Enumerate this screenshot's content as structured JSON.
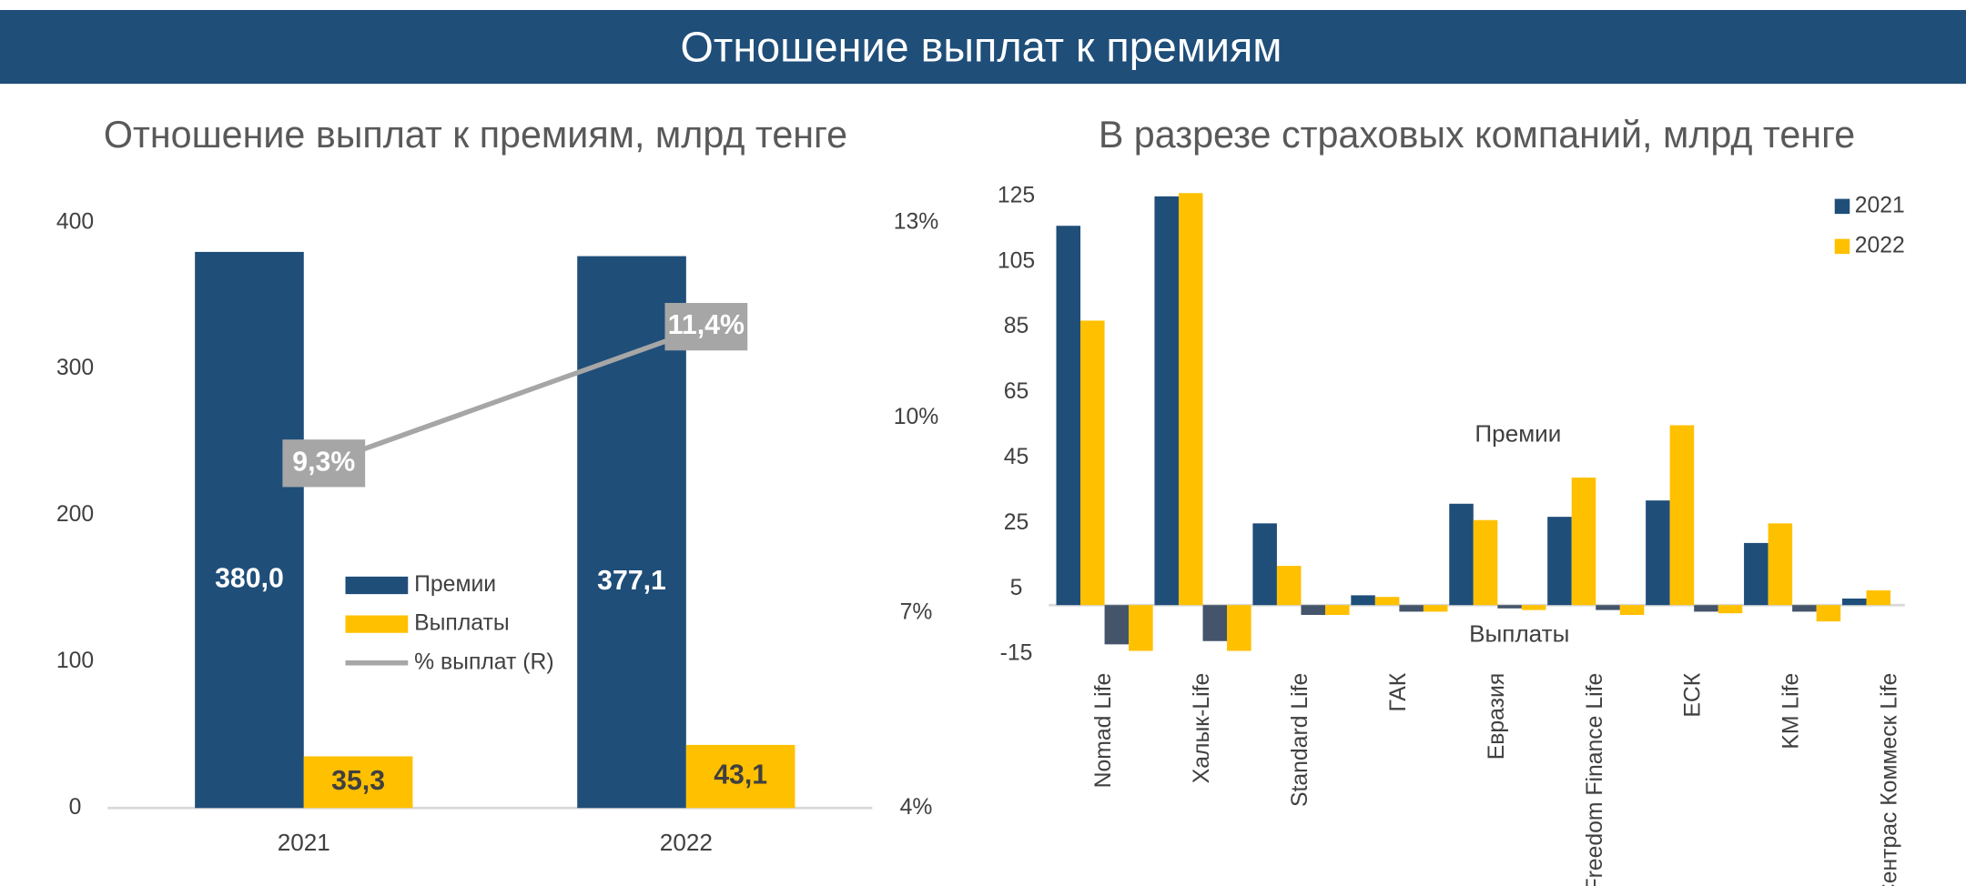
{
  "header": {
    "title": "Отношение выплат к премиям"
  },
  "chart_data": [
    {
      "type": "bar_line",
      "title": "Отношение выплат к премиям, млрд тенге",
      "categories": [
        "2021",
        "2022"
      ],
      "series": [
        {
          "name": "Премии",
          "color": "#1f4e79",
          "values": [
            380.0,
            377.1
          ],
          "value_labels": [
            "380,0",
            "377,1"
          ]
        },
        {
          "name": "Выплаты",
          "color": "#ffc000",
          "values": [
            35.3,
            43.1
          ],
          "value_labels": [
            "35,3",
            "43,1"
          ]
        },
        {
          "name": "%  выплат (R)",
          "color": "#a6a6a6",
          "axis": "y2",
          "values": [
            9.3,
            11.4
          ],
          "value_labels": [
            "9,3%",
            "11,4%"
          ]
        }
      ],
      "ylim": [
        0,
        400
      ],
      "yticks": [
        0,
        100,
        200,
        300,
        400
      ],
      "y2lim": [
        4,
        13
      ],
      "y2ticks": [
        {
          "value": 4,
          "label": "4%"
        },
        {
          "value": 7,
          "label": "7%"
        },
        {
          "value": 10,
          "label": "10%"
        },
        {
          "value": 13,
          "label": "13%"
        }
      ]
    },
    {
      "type": "grouped_bar",
      "title": "В разрезе страховых компаний, млрд тенге",
      "categories": [
        "Nomad Life",
        "Халык-Life",
        "Standard Life",
        "ГАК",
        "Евразия",
        "Freedom Finance Life",
        "ЕСК",
        "KM Life",
        "Сентрас Коммеск Life"
      ],
      "series": [
        {
          "name": "2021",
          "color": "#1f4e79",
          "payout_color": "#44546a",
          "values": [
            116,
            125,
            25,
            3,
            31,
            27,
            32,
            19,
            2
          ],
          "payouts": [
            -12,
            -11,
            -3,
            -2,
            -1,
            -1.5,
            -2,
            -2,
            0
          ]
        },
        {
          "name": "2022",
          "color": "#ffc000",
          "payout_color": "#ffc000",
          "values": [
            87,
            126,
            12,
            2.5,
            26,
            39,
            55,
            25,
            4.5
          ],
          "payouts": [
            -14,
            -14,
            -3,
            -2,
            -1.5,
            -3,
            -2.5,
            -5,
            0
          ]
        }
      ],
      "annotations": [
        "Премии",
        "Выплаты"
      ],
      "ylim": [
        -15,
        125
      ],
      "yticks": [
        -15,
        5,
        25,
        45,
        65,
        85,
        105,
        125
      ]
    }
  ]
}
